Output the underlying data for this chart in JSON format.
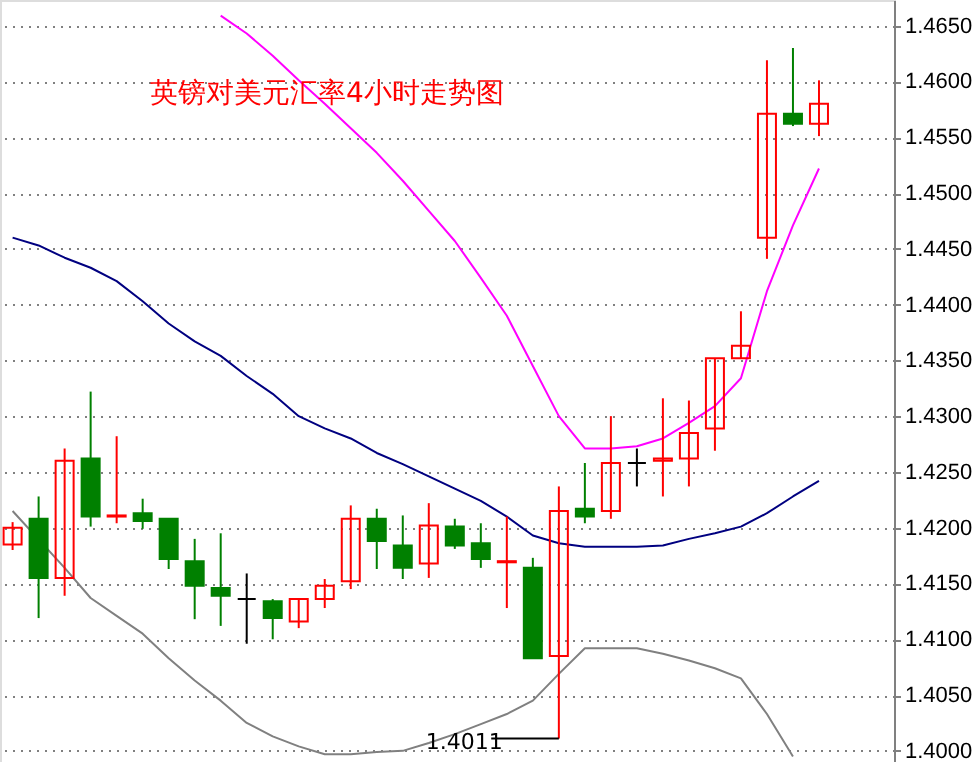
{
  "chart_data": {
    "type": "candlestick",
    "title": "英镑对美元汇率4小时走势图",
    "categories": [
      null,
      null,
      null,
      null,
      null,
      null,
      null,
      null,
      null,
      null,
      null,
      null,
      null,
      null,
      null,
      null,
      null,
      null,
      null,
      null,
      null,
      null,
      null,
      null,
      null,
      null,
      null,
      null,
      null,
      null,
      null,
      null
    ],
    "ohlc": [
      [
        1.4185,
        1.4205,
        1.418,
        1.42
      ],
      [
        1.4208,
        1.4228,
        1.4119,
        1.4155
      ],
      [
        1.4155,
        1.4271,
        1.4139,
        1.426
      ],
      [
        1.4262,
        1.4322,
        1.4201,
        1.421
      ],
      [
        1.421,
        1.4282,
        1.4204,
        1.4211
      ],
      [
        1.4213,
        1.4226,
        1.4199,
        1.4206
      ],
      [
        1.4208,
        1.4208,
        1.4163,
        1.4172
      ],
      [
        1.417,
        1.419,
        1.4118,
        1.4148
      ],
      [
        1.4146,
        1.4195,
        1.4112,
        1.4139
      ],
      [
        1.4136,
        1.4159,
        1.4096,
        1.4136
      ],
      [
        1.4134,
        1.4136,
        1.41,
        1.4119
      ],
      [
        1.4116,
        1.4137,
        1.411,
        1.4136
      ],
      [
        1.4136,
        1.4154,
        1.4128,
        1.4148
      ],
      [
        1.4152,
        1.422,
        1.4145,
        1.4208
      ],
      [
        1.4208,
        1.4217,
        1.4163,
        1.4188
      ],
      [
        1.4184,
        1.4211,
        1.4154,
        1.4164
      ],
      [
        1.4168,
        1.4222,
        1.4155,
        1.4202
      ],
      [
        1.4201,
        1.4208,
        1.4181,
        1.4184
      ],
      [
        1.4186,
        1.4204,
        1.4164,
        1.4172
      ],
      [
        1.4169,
        1.421,
        1.4128,
        1.417
      ],
      [
        1.4164,
        1.4173,
        1.4083,
        1.4083
      ],
      [
        1.4085,
        1.4237,
        1.4011,
        1.4215
      ],
      [
        1.4217,
        1.4258,
        1.4204,
        1.421
      ],
      [
        1.4215,
        1.43,
        1.4208,
        1.4258
      ],
      [
        1.4258,
        1.4271,
        1.4237,
        1.4258
      ],
      [
        1.426,
        1.4316,
        1.4228,
        1.4262
      ],
      [
        1.4262,
        1.4314,
        1.4237,
        1.4285
      ],
      [
        1.4289,
        1.4352,
        1.4269,
        1.4352
      ],
      [
        1.4352,
        1.4394,
        1.4352,
        1.4363
      ],
      [
        1.446,
        1.4619,
        1.4441,
        1.4571
      ],
      [
        1.4571,
        1.463,
        1.456,
        1.4562
      ],
      [
        1.4562,
        1.4601,
        1.4551,
        1.458
      ]
    ],
    "colors": [
      "#ff0000",
      "#008000",
      "#ff0000",
      "#008000",
      "#ff0000",
      "#008000",
      "#008000",
      "#008000",
      "#008000",
      "#000000",
      "#008000",
      "#ff0000",
      "#ff0000",
      "#ff0000",
      "#008000",
      "#008000",
      "#ff0000",
      "#008000",
      "#008000",
      "#ff0000",
      "#008000",
      "#ff0000",
      "#008000",
      "#ff0000",
      "#000000",
      "#ff0000",
      "#ff0000",
      "#ff0000",
      "#ff0000",
      "#ff0000",
      "#008000",
      "#ff0000"
    ],
    "series": [
      {
        "type": "line",
        "color": "#ff00ff",
        "values": [
          null,
          null,
          null,
          null,
          null,
          null,
          null,
          null,
          1.4659,
          1.4643,
          1.4623,
          1.4601,
          1.458,
          1.4558,
          1.4536,
          1.4511,
          1.4484,
          1.4457,
          1.4424,
          1.439,
          1.4345,
          1.43,
          1.4271,
          1.4271,
          1.4273,
          1.428,
          1.4294,
          1.4309,
          1.4334,
          1.4412,
          1.4471,
          1.4522
        ]
      },
      {
        "type": "line",
        "color": "#000080",
        "values": [
          1.446,
          1.4453,
          1.4442,
          1.4433,
          1.4421,
          1.4403,
          1.4383,
          1.4367,
          1.4354,
          1.4336,
          1.432,
          1.43,
          1.4289,
          1.428,
          1.4267,
          1.4257,
          1.4246,
          1.4235,
          1.4224,
          1.421,
          1.4193,
          1.4186,
          1.4183,
          1.4183,
          1.4183,
          1.4184,
          1.419,
          1.4195,
          1.4201,
          1.4213,
          1.4228,
          1.4242
        ]
      },
      {
        "type": "line",
        "color": "#808080",
        "values": [
          1.4215,
          null,
          1.4164,
          1.4137,
          1.4121,
          1.4105,
          1.4083,
          1.4063,
          1.4045,
          1.4025,
          1.4013,
          1.4004,
          1.3997,
          1.3997,
          1.3999,
          1.4,
          1.4007,
          1.4015,
          1.4024,
          1.4033,
          1.4045,
          1.4069,
          1.4092,
          1.4092,
          1.4092,
          1.4087,
          1.4081,
          1.4074,
          1.4065,
          1.4033,
          1.3995,
          null
        ]
      }
    ],
    "annotations": [
      {
        "text": "1.4011",
        "y": 1.4011
      }
    ],
    "ylim": [
      1.399,
      1.4673
    ],
    "yticks": [
      {
        "value": 1.4,
        "label": "1.4000"
      },
      {
        "value": 1.405,
        "label": "1.4050"
      },
      {
        "value": 1.41,
        "label": "1.4100"
      },
      {
        "value": 1.415,
        "label": "1.4150"
      },
      {
        "value": 1.42,
        "label": "1.4200"
      },
      {
        "value": 1.425,
        "label": "1.4250"
      },
      {
        "value": 1.43,
        "label": "1.4300"
      },
      {
        "value": 1.435,
        "label": "1.4350"
      },
      {
        "value": 1.44,
        "label": "1.4400"
      },
      {
        "value": 1.445,
        "label": "1.4450"
      },
      {
        "value": 1.45,
        "label": "1.4500"
      },
      {
        "value": 1.455,
        "label": "1.4550"
      },
      {
        "value": 1.46,
        "label": "1.4600"
      },
      {
        "value": 1.465,
        "label": "1.4650"
      }
    ],
    "grid": "y",
    "tick_labels": "y"
  }
}
